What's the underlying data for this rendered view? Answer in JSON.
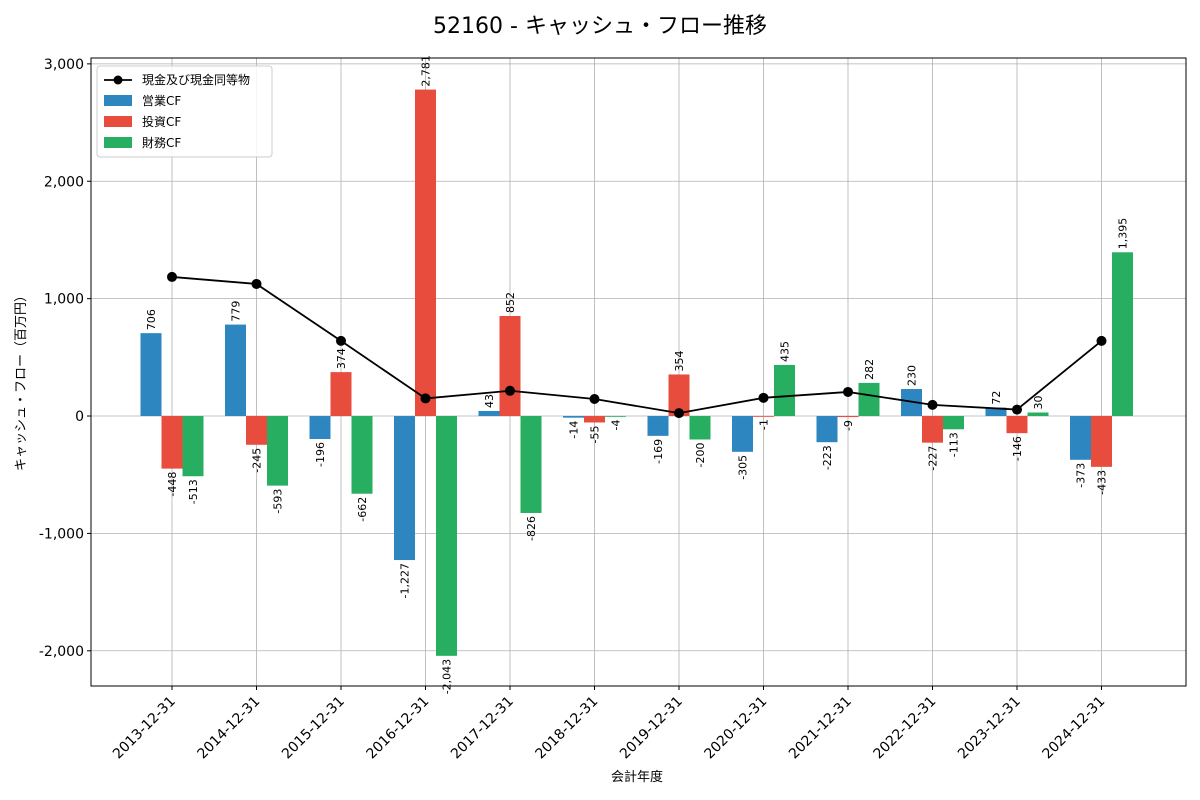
{
  "chart_data": {
    "type": "bar",
    "title": "52160 - キャッシュ・フロー推移",
    "xlabel": "会計年度",
    "ylabel": "キャッシュ・フロー（百万円）",
    "categories": [
      "2013-12-31",
      "2014-12-31",
      "2015-12-31",
      "2016-12-31",
      "2017-12-31",
      "2018-12-31",
      "2019-12-31",
      "2020-12-31",
      "2021-12-31",
      "2022-12-31",
      "2023-12-31",
      "2024-12-31"
    ],
    "series": [
      {
        "name": "営業CF",
        "color": "#2e86c1",
        "values": [
          706,
          779,
          -196,
          -1227,
          43,
          -14,
          -169,
          -305,
          -223,
          230,
          72,
          -373
        ],
        "labels": [
          "706",
          "779",
          "-196",
          "-1,227",
          "43",
          "-14",
          "-169",
          "-305",
          "-223",
          "230",
          "72",
          "-373"
        ]
      },
      {
        "name": "投資CF",
        "color": "#e74c3c",
        "values": [
          -448,
          -245,
          374,
          2781,
          852,
          -55,
          354,
          -1,
          -9,
          -227,
          -146,
          -433
        ],
        "labels": [
          "-448",
          "-245",
          "374",
          "2,781",
          "852",
          "-55",
          "354",
          "-1",
          "-9",
          "-227",
          "-146",
          "-433"
        ]
      },
      {
        "name": "財務CF",
        "color": "#27ae60",
        "values": [
          -513,
          -593,
          -662,
          -2043,
          -826,
          -4,
          -200,
          435,
          282,
          -113,
          30,
          1395
        ],
        "labels": [
          "-513",
          "-593",
          "-662",
          "-2,043",
          "-826",
          "-4",
          "-200",
          "435",
          "282",
          "-113",
          "30",
          "1,395"
        ]
      }
    ],
    "line": {
      "name": "現金及び現金同等物",
      "color": "#000000",
      "values": [
        1185,
        1125,
        640,
        150,
        215,
        145,
        25,
        155,
        205,
        95,
        55,
        640
      ]
    },
    "yticks": [
      -2000,
      -1000,
      0,
      1000,
      2000,
      3000
    ],
    "ytick_labels": [
      "-2,000",
      "-1,000",
      "0",
      "1,000",
      "2,000",
      "3,000"
    ],
    "ylim": [
      -2300,
      3050
    ],
    "grid": true,
    "legend_position": "top-left"
  }
}
